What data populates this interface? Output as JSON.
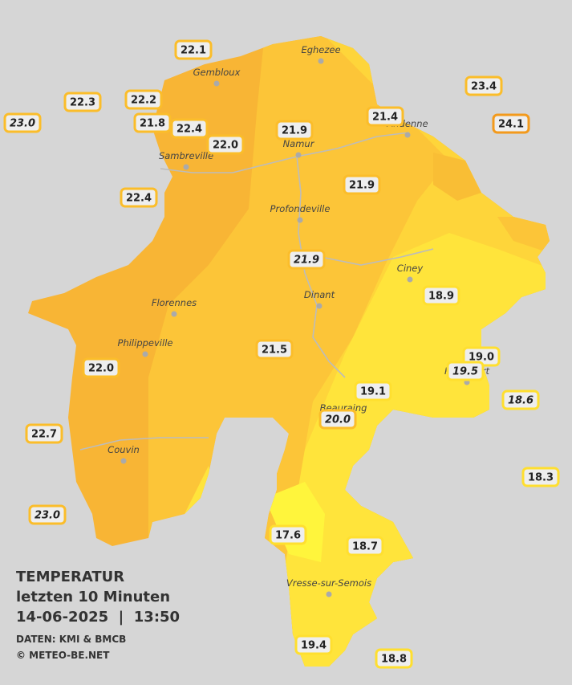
{
  "legend": {
    "title": "TEMPERATUR",
    "subtitle": "letzten 10 Minuten",
    "datetime": "14-06-2025  |  13:50",
    "source": "DATEN: KMI & BMCB",
    "copyright": "© METEO-BE.NET"
  },
  "cities": [
    "Eghezee",
    "Gembloux",
    "Andenne",
    "Namur",
    "Sambreville",
    "Profondeville",
    "Ciney",
    "Dinant",
    "Florennes",
    "Philippeville",
    "Rochefort",
    "Beauraing",
    "Couvin",
    "Vresse-sur-Semois"
  ],
  "stations": [
    "22.1",
    "22.3",
    "22.2",
    "23.0",
    "21.8",
    "22.4",
    "22.0",
    "21.9",
    "21.4",
    "23.4",
    "24.1",
    "22.4",
    "21.9",
    "21.9",
    "18.9",
    "21.5",
    "22.0",
    "19.0",
    "19.5",
    "19.1",
    "18.6",
    "20.0",
    "22.7",
    "18.3",
    "23.0",
    "17.6",
    "18.7",
    "19.4",
    "18.8"
  ]
}
